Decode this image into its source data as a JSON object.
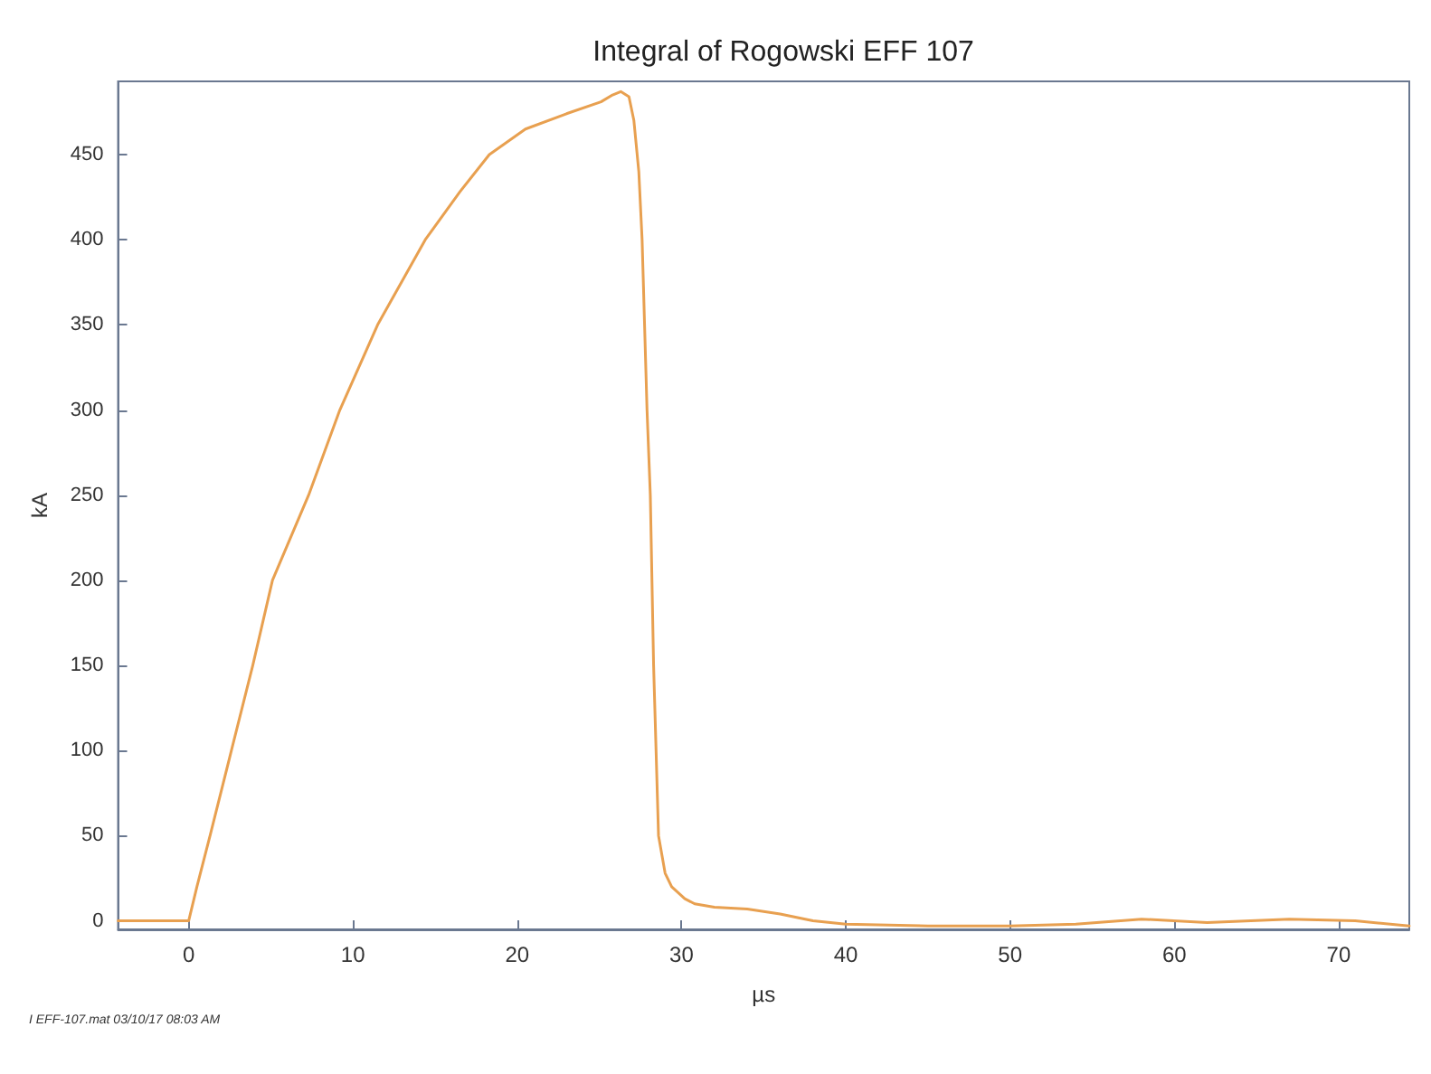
{
  "chart_data": {
    "type": "line",
    "title": "Integral of Rogowski EFF 107",
    "xlabel": "µs",
    "ylabel": "kA",
    "annotations": [
      "I EFF-107.mat 03/10/17 08:03 AM"
    ],
    "x": [
      -4.3,
      -2,
      0,
      0.5,
      1.3,
      2.6,
      3.9,
      5.1,
      7.3,
      9.2,
      11.5,
      14.4,
      16.5,
      18.3,
      20.5,
      23,
      25.1,
      25.8,
      26.3,
      26.8,
      27.1,
      27.4,
      27.6,
      27.9,
      28.1,
      28.3,
      28.6,
      29,
      29.4,
      30.2,
      30.8,
      32,
      34,
      36,
      38,
      40,
      45,
      50,
      54,
      58,
      62,
      67,
      71,
      74.3
    ],
    "series": [
      {
        "color": "#e8a050",
        "values": [
          0,
          0,
          0,
          20,
          50,
          100,
          150,
          200,
          250,
          300,
          350,
          400,
          428,
          450,
          465,
          474,
          481,
          485,
          487,
          484,
          470,
          440,
          400,
          300,
          250,
          150,
          50,
          28,
          20,
          13,
          10,
          8,
          7,
          4,
          0,
          -2,
          -3,
          -3,
          -2,
          1,
          -1,
          1,
          0,
          -3
        ]
      }
    ],
    "xlim": [
      -4.3,
      74.3
    ],
    "ylim": [
      -5,
      493
    ],
    "xticks": [
      0,
      10,
      20,
      30,
      40,
      50,
      60,
      70
    ],
    "yticks": [
      0,
      50,
      100,
      150,
      200,
      250,
      300,
      350,
      400,
      450
    ],
    "grid": false,
    "marker": "none",
    "line_style": "solid"
  }
}
